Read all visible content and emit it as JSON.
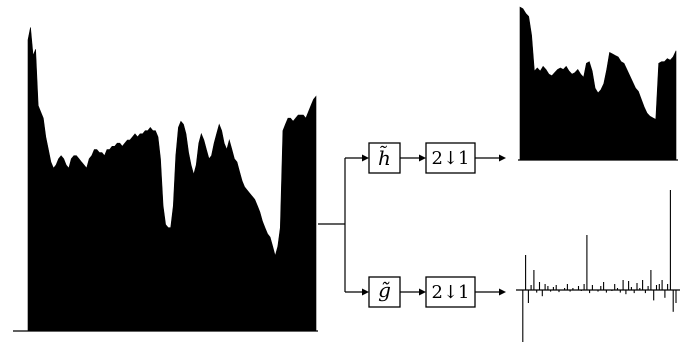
{
  "diagram": {
    "type": "wavelet-filter-bank-analysis",
    "colors": {
      "ink": "#000000",
      "background": "#ffffff"
    },
    "blocks": {
      "lowpass_filter": {
        "label": "h̃"
      },
      "highpass_filter": {
        "label": "g̃"
      },
      "downsample_top": {
        "label": "2↓1"
      },
      "downsample_bottom": {
        "label": "2↓1"
      }
    },
    "signals": {
      "input": {
        "values": [
          0.93,
          0.97,
          0.88,
          0.9,
          0.72,
          0.7,
          0.68,
          0.62,
          0.58,
          0.54,
          0.52,
          0.53,
          0.55,
          0.56,
          0.55,
          0.53,
          0.52,
          0.55,
          0.56,
          0.56,
          0.55,
          0.54,
          0.53,
          0.52,
          0.55,
          0.56,
          0.58,
          0.58,
          0.57,
          0.57,
          0.56,
          0.58,
          0.58,
          0.59,
          0.59,
          0.6,
          0.6,
          0.59,
          0.6,
          0.61,
          0.61,
          0.62,
          0.63,
          0.62,
          0.63,
          0.63,
          0.64,
          0.64,
          0.65,
          0.64,
          0.64,
          0.62,
          0.55,
          0.4,
          0.34,
          0.33,
          0.33,
          0.4,
          0.56,
          0.65,
          0.67,
          0.66,
          0.63,
          0.57,
          0.53,
          0.5,
          0.53,
          0.6,
          0.63,
          0.61,
          0.58,
          0.55,
          0.56,
          0.6,
          0.63,
          0.66,
          0.64,
          0.6,
          0.58,
          0.61,
          0.58,
          0.55,
          0.54,
          0.51,
          0.48,
          0.46,
          0.45,
          0.44,
          0.43,
          0.42,
          0.4,
          0.38,
          0.35,
          0.33,
          0.31,
          0.3,
          0.27,
          0.24,
          0.27,
          0.33,
          0.64,
          0.66,
          0.68,
          0.68,
          0.67,
          0.68,
          0.69,
          0.69,
          0.69,
          0.68,
          0.7,
          0.72,
          0.74,
          0.75
        ],
        "baseline": 0.03
      },
      "approximation": {
        "values": [
          0.98,
          0.97,
          0.94,
          0.92,
          0.8,
          0.57,
          0.59,
          0.57,
          0.6,
          0.58,
          0.55,
          0.54,
          0.56,
          0.58,
          0.59,
          0.58,
          0.6,
          0.57,
          0.55,
          0.56,
          0.58,
          0.55,
          0.53,
          0.62,
          0.63,
          0.57,
          0.46,
          0.43,
          0.45,
          0.49,
          0.58,
          0.69,
          0.68,
          0.67,
          0.66,
          0.63,
          0.62,
          0.58,
          0.54,
          0.5,
          0.46,
          0.44,
          0.39,
          0.34,
          0.3,
          0.28,
          0.27,
          0.26,
          0.62,
          0.63,
          0.63,
          0.65,
          0.64,
          0.66,
          0.7
        ]
      },
      "detail": {
        "values": [
          0.0,
          -1.0,
          0.35,
          -0.25,
          0.05,
          0.2,
          -0.05,
          0.08,
          -0.12,
          0.06,
          0.04,
          -0.03,
          0.03,
          0.05,
          -0.04,
          0.0,
          0.02,
          0.06,
          -0.03,
          0.02,
          0.0,
          0.04,
          -0.02,
          0.06,
          0.55,
          -0.06,
          0.05,
          0.0,
          -0.03,
          0.04,
          0.08,
          -0.05,
          0.0,
          -0.02,
          0.06,
          0.02,
          -0.05,
          0.1,
          -0.08,
          0.09,
          0.03,
          -0.06,
          0.07,
          0.02,
          0.1,
          -0.06,
          0.04,
          0.2,
          -0.2,
          0.05,
          0.06,
          0.1,
          -0.15,
          0.06,
          1.0,
          -0.42,
          -0.25
        ]
      }
    }
  }
}
